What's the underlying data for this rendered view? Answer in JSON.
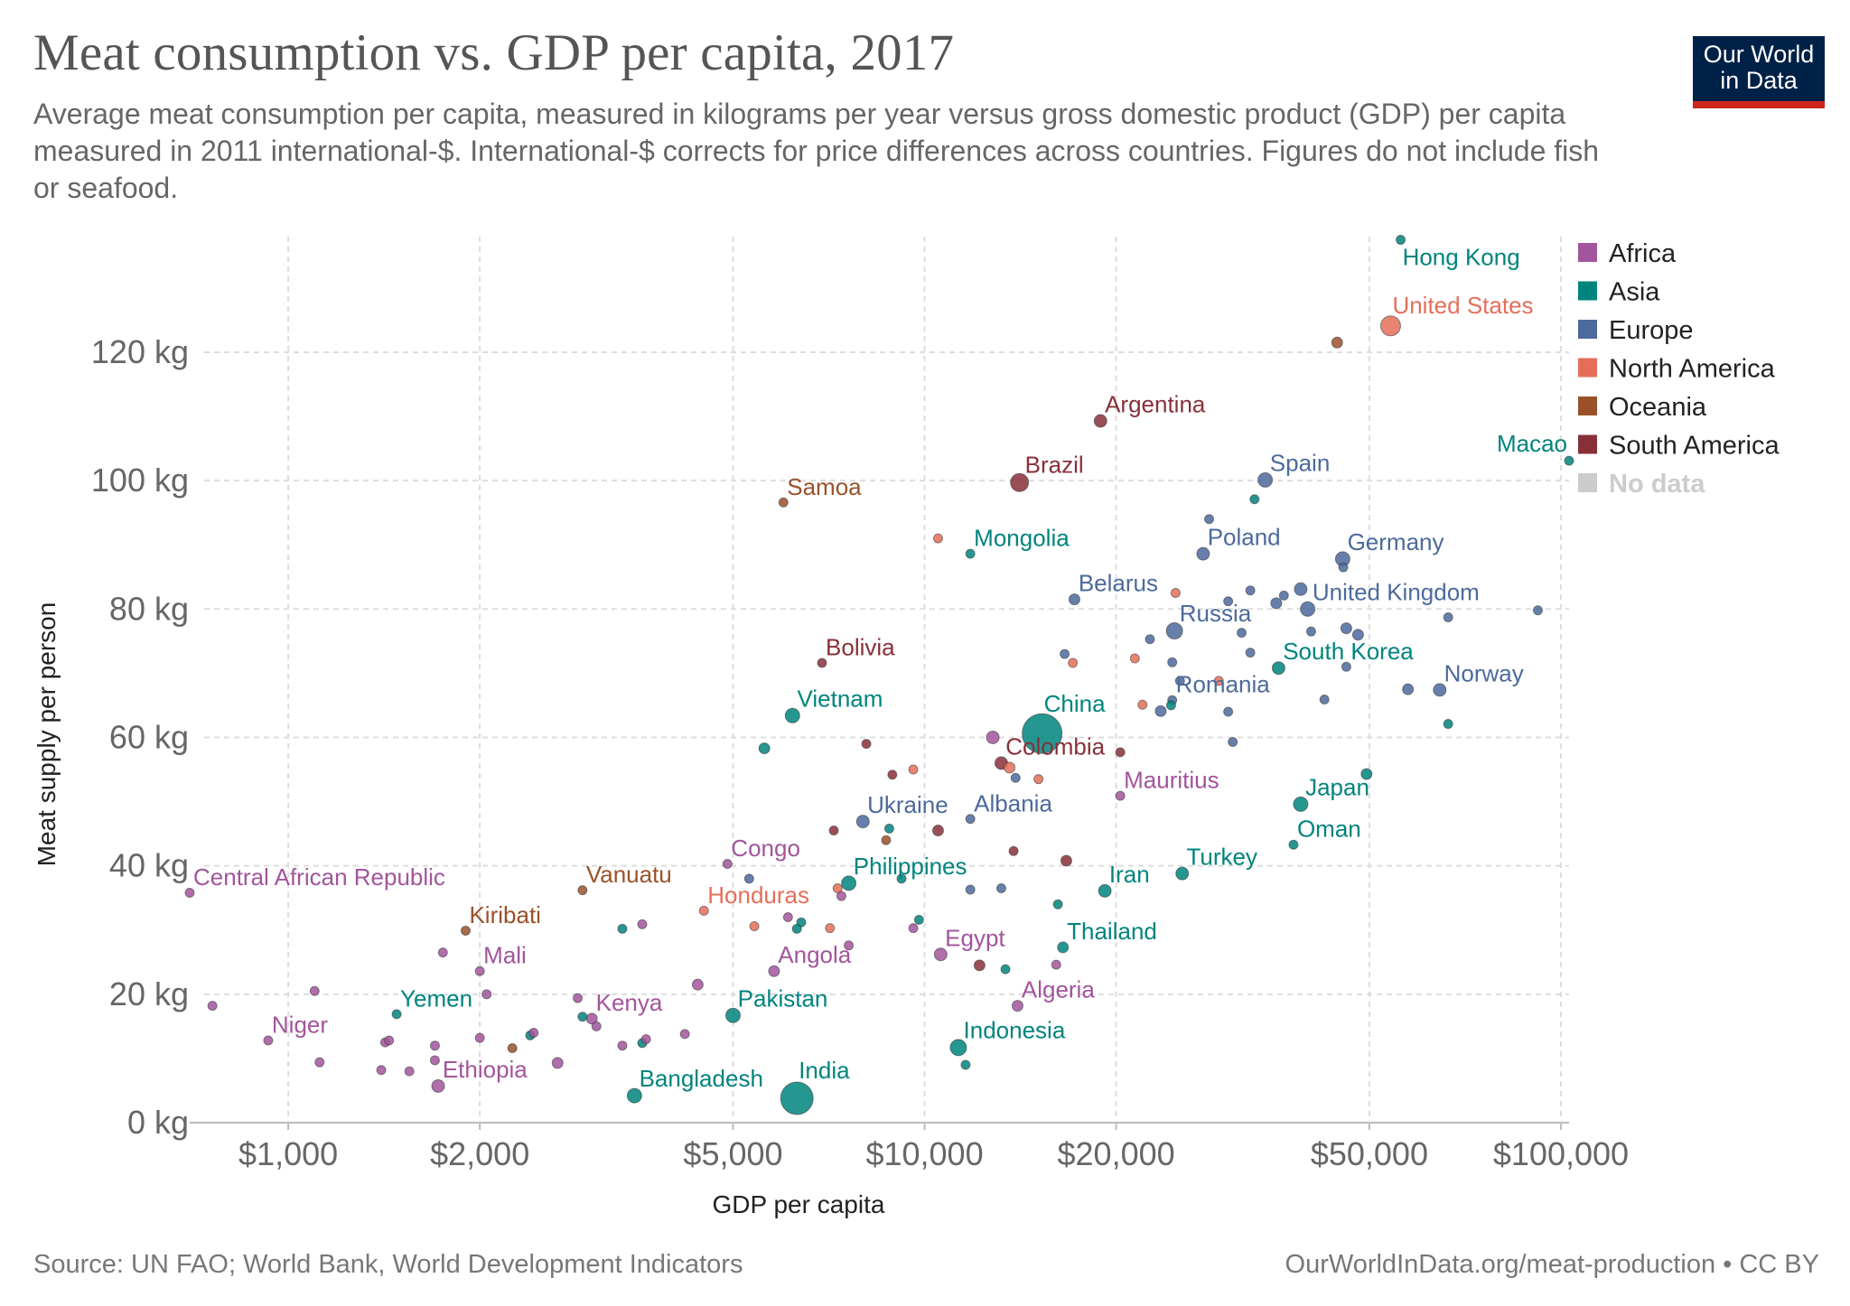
{
  "header": {
    "title": "Meat consumption vs. GDP per capita, 2017",
    "subtitle": "Average meat consumption per capita, measured in kilograms per year versus gross domestic product (GDP) per capita measured in 2011 international-$. International-$ corrects for price differences across countries. Figures do not include fish or seafood.",
    "logo_line1": "Our World",
    "logo_line2": "in Data"
  },
  "footer": {
    "source": "Source: UN FAO; World Bank, World Development Indicators",
    "link": "OurWorldInData.org/meat-production • CC BY"
  },
  "colors": {
    "Africa": "#a2559c",
    "Asia": "#00847e",
    "Europe": "#4c6a9c",
    "North America": "#e56e5a",
    "Oceania": "#9a5129",
    "South America": "#883039",
    "No data": "#cccccc",
    "grid": "#dddddd",
    "axis_text": "#666666"
  },
  "chart_data": {
    "type": "scatter",
    "xlabel": "GDP per capita",
    "ylabel": "Meat supply per person",
    "x_scale": "log",
    "xlim": [
      700,
      103000
    ],
    "ylim": [
      0,
      138
    ],
    "x_ticks": [
      1000,
      2000,
      5000,
      10000,
      20000,
      50000,
      100000
    ],
    "x_tick_labels": [
      "$1,000",
      "$2,000",
      "$5,000",
      "$10,000",
      "$20,000",
      "$50,000",
      "$100,000"
    ],
    "y_ticks": [
      0,
      20,
      40,
      60,
      80,
      100,
      120
    ],
    "y_tick_labels": [
      "0 kg",
      "20 kg",
      "40 kg",
      "60 kg",
      "80 kg",
      "100 kg",
      "120 kg"
    ],
    "grid": true,
    "legend_position": "right",
    "legend": [
      "Africa",
      "Asia",
      "Europe",
      "North America",
      "Oceania",
      "South America",
      "No data"
    ],
    "points": [
      {
        "label": "Hong Kong",
        "region": "Asia",
        "x": 56000,
        "y": 137.5,
        "size": 5
      },
      {
        "label": "United States",
        "region": "North America",
        "x": 54000,
        "y": 124.1,
        "size": 11
      },
      {
        "label": "",
        "region": "Oceania",
        "x": 44500,
        "y": 121.5,
        "size": 6
      },
      {
        "label": "Argentina",
        "region": "South America",
        "x": 18900,
        "y": 109.3,
        "size": 7
      },
      {
        "label": "Macao",
        "region": "Asia",
        "x": 103000,
        "y": 103.1,
        "size": 5
      },
      {
        "label": "Spain",
        "region": "Europe",
        "x": 34300,
        "y": 100.1,
        "size": 8
      },
      {
        "label": "Brazil",
        "region": "South America",
        "x": 14100,
        "y": 99.7,
        "size": 10
      },
      {
        "label": "Samoa",
        "region": "Oceania",
        "x": 6000,
        "y": 96.6,
        "size": 5
      },
      {
        "label": "",
        "region": "Europe",
        "x": 28000,
        "y": 94.0,
        "size": 5
      },
      {
        "label": "",
        "region": "Asia",
        "x": 33000,
        "y": 97.1,
        "size": 5
      },
      {
        "label": "Mongolia",
        "region": "Asia",
        "x": 11800,
        "y": 88.6,
        "size": 5
      },
      {
        "label": "",
        "region": "North America",
        "x": 10500,
        "y": 91.0,
        "size": 5
      },
      {
        "label": "Poland",
        "region": "Europe",
        "x": 27400,
        "y": 88.6,
        "size": 7
      },
      {
        "label": "Germany",
        "region": "Europe",
        "x": 45400,
        "y": 87.8,
        "size": 8
      },
      {
        "label": "",
        "region": "Europe",
        "x": 45500,
        "y": 86.5,
        "size": 5
      },
      {
        "label": "Belarus",
        "region": "Europe",
        "x": 17200,
        "y": 81.5,
        "size": 6
      },
      {
        "label": "",
        "region": "North America",
        "x": 24800,
        "y": 82.5,
        "size": 5
      },
      {
        "label": "",
        "region": "Europe",
        "x": 32500,
        "y": 82.9,
        "size": 5
      },
      {
        "label": "",
        "region": "Europe",
        "x": 30000,
        "y": 81.2,
        "size": 5
      },
      {
        "label": "",
        "region": "Europe",
        "x": 36700,
        "y": 82.1,
        "size": 5
      },
      {
        "label": "",
        "region": "Europe",
        "x": 39000,
        "y": 83.1,
        "size": 7
      },
      {
        "label": "",
        "region": "Europe",
        "x": 35700,
        "y": 80.9,
        "size": 6
      },
      {
        "label": "United Kingdom",
        "region": "Europe",
        "x": 40000,
        "y": 80.0,
        "size": 8
      },
      {
        "label": "",
        "region": "Europe",
        "x": 66500,
        "y": 78.7,
        "size": 5
      },
      {
        "label": "",
        "region": "Europe",
        "x": 92000,
        "y": 79.8,
        "size": 5
      },
      {
        "label": "Russia",
        "region": "Europe",
        "x": 24700,
        "y": 76.6,
        "size": 9
      },
      {
        "label": "",
        "region": "Europe",
        "x": 22600,
        "y": 75.3,
        "size": 5
      },
      {
        "label": "",
        "region": "Europe",
        "x": 31500,
        "y": 76.3,
        "size": 5
      },
      {
        "label": "",
        "region": "Europe",
        "x": 40500,
        "y": 76.5,
        "size": 5
      },
      {
        "label": "",
        "region": "Europe",
        "x": 46000,
        "y": 77.0,
        "size": 6
      },
      {
        "label": "",
        "region": "Europe",
        "x": 48000,
        "y": 76.0,
        "size": 6
      },
      {
        "label": "Bolivia",
        "region": "South America",
        "x": 6900,
        "y": 71.6,
        "size": 5
      },
      {
        "label": "",
        "region": "Europe",
        "x": 16600,
        "y": 73.0,
        "size": 5
      },
      {
        "label": "",
        "region": "North America",
        "x": 17100,
        "y": 71.6,
        "size": 5
      },
      {
        "label": "",
        "region": "North America",
        "x": 21400,
        "y": 72.3,
        "size": 5
      },
      {
        "label": "",
        "region": "Europe",
        "x": 24500,
        "y": 71.7,
        "size": 5
      },
      {
        "label": "",
        "region": "Europe",
        "x": 32500,
        "y": 73.2,
        "size": 5
      },
      {
        "label": "South Korea",
        "region": "Asia",
        "x": 36000,
        "y": 70.8,
        "size": 7
      },
      {
        "label": "",
        "region": "Europe",
        "x": 46000,
        "y": 71.0,
        "size": 5
      },
      {
        "label": "",
        "region": "Europe",
        "x": 25200,
        "y": 68.8,
        "size": 5
      },
      {
        "label": "",
        "region": "North America",
        "x": 29000,
        "y": 68.8,
        "size": 5
      },
      {
        "label": "",
        "region": "Europe",
        "x": 57500,
        "y": 67.5,
        "size": 6
      },
      {
        "label": "Norway",
        "region": "Europe",
        "x": 64500,
        "y": 67.4,
        "size": 7
      },
      {
        "label": "Romania",
        "region": "Europe",
        "x": 24500,
        "y": 65.8,
        "size": 5
      },
      {
        "label": "",
        "region": "Asia",
        "x": 24400,
        "y": 65.0,
        "size": 5
      },
      {
        "label": "",
        "region": "North America",
        "x": 22000,
        "y": 65.1,
        "size": 5
      },
      {
        "label": "",
        "region": "Europe",
        "x": 23500,
        "y": 64.1,
        "size": 6
      },
      {
        "label": "",
        "region": "Europe",
        "x": 30000,
        "y": 64.0,
        "size": 5
      },
      {
        "label": "",
        "region": "Europe",
        "x": 42500,
        "y": 65.9,
        "size": 5
      },
      {
        "label": "Vietnam",
        "region": "Asia",
        "x": 6200,
        "y": 63.4,
        "size": 8
      },
      {
        "label": "",
        "region": "Asia",
        "x": 66500,
        "y": 62.1,
        "size": 5
      },
      {
        "label": "China",
        "region": "Asia",
        "x": 15300,
        "y": 60.6,
        "size": 22
      },
      {
        "label": "",
        "region": "Africa",
        "x": 12800,
        "y": 60.0,
        "size": 7
      },
      {
        "label": "",
        "region": "Europe",
        "x": 30500,
        "y": 59.3,
        "size": 5
      },
      {
        "label": "",
        "region": "Asia",
        "x": 5600,
        "y": 58.3,
        "size": 6
      },
      {
        "label": "",
        "region": "South America",
        "x": 8100,
        "y": 59.0,
        "size": 5
      },
      {
        "label": "Colombia",
        "region": "South America",
        "x": 13200,
        "y": 56.0,
        "size": 7
      },
      {
        "label": "",
        "region": "South America",
        "x": 20300,
        "y": 57.7,
        "size": 5
      },
      {
        "label": "",
        "region": "North America",
        "x": 9600,
        "y": 55.0,
        "size": 5
      },
      {
        "label": "",
        "region": "South America",
        "x": 8900,
        "y": 54.2,
        "size": 5
      },
      {
        "label": "",
        "region": "North America",
        "x": 13600,
        "y": 55.3,
        "size": 6
      },
      {
        "label": "",
        "region": "Europe",
        "x": 13900,
        "y": 53.7,
        "size": 5
      },
      {
        "label": "",
        "region": "North America",
        "x": 15100,
        "y": 53.5,
        "size": 5
      },
      {
        "label": "Mauritius",
        "region": "Africa",
        "x": 20300,
        "y": 50.9,
        "size": 5
      },
      {
        "label": "",
        "region": "Asia",
        "x": 49500,
        "y": 54.3,
        "size": 6
      },
      {
        "label": "Japan",
        "region": "Asia",
        "x": 39000,
        "y": 49.6,
        "size": 8
      },
      {
        "label": "Ukraine",
        "region": "Europe",
        "x": 8000,
        "y": 46.9,
        "size": 7
      },
      {
        "label": "Albania",
        "region": "Europe",
        "x": 11800,
        "y": 47.3,
        "size": 5
      },
      {
        "label": "",
        "region": "South America",
        "x": 7200,
        "y": 45.5,
        "size": 5
      },
      {
        "label": "",
        "region": "Asia",
        "x": 8800,
        "y": 45.8,
        "size": 5
      },
      {
        "label": "",
        "region": "South America",
        "x": 10500,
        "y": 45.5,
        "size": 6
      },
      {
        "label": "",
        "region": "Oceania",
        "x": 8700,
        "y": 44.0,
        "size": 5
      },
      {
        "label": "Oman",
        "region": "Asia",
        "x": 38000,
        "y": 43.3,
        "size": 5
      },
      {
        "label": "",
        "region": "South America",
        "x": 13800,
        "y": 42.3,
        "size": 5
      },
      {
        "label": "",
        "region": "South America",
        "x": 16700,
        "y": 40.8,
        "size": 6
      },
      {
        "label": "Congo",
        "region": "Africa",
        "x": 4900,
        "y": 40.3,
        "size": 5
      },
      {
        "label": "",
        "region": "Europe",
        "x": 5300,
        "y": 38.0,
        "size": 5
      },
      {
        "label": "Philippines",
        "region": "Asia",
        "x": 7600,
        "y": 37.3,
        "size": 8
      },
      {
        "label": "",
        "region": "Asia",
        "x": 9200,
        "y": 38.0,
        "size": 5
      },
      {
        "label": "",
        "region": "North America",
        "x": 7300,
        "y": 36.5,
        "size": 5
      },
      {
        "label": "",
        "region": "Africa",
        "x": 7400,
        "y": 35.3,
        "size": 5
      },
      {
        "label": "",
        "region": "Europe",
        "x": 11800,
        "y": 36.3,
        "size": 5
      },
      {
        "label": "",
        "region": "Europe",
        "x": 13200,
        "y": 36.5,
        "size": 5
      },
      {
        "label": "Iran",
        "region": "Asia",
        "x": 19200,
        "y": 36.1,
        "size": 7
      },
      {
        "label": "Turkey",
        "region": "Asia",
        "x": 25400,
        "y": 38.8,
        "size": 7
      },
      {
        "label": "",
        "region": "Asia",
        "x": 16200,
        "y": 34.0,
        "size": 5
      },
      {
        "label": "Central African Republic",
        "region": "Africa",
        "x": 700,
        "y": 35.8,
        "size": 5
      },
      {
        "label": "Vanuatu",
        "region": "Oceania",
        "x": 2900,
        "y": 36.2,
        "size": 5
      },
      {
        "label": "Honduras",
        "region": "North America",
        "x": 4500,
        "y": 33.0,
        "size": 5
      },
      {
        "label": "Kiribati",
        "region": "Oceania",
        "x": 1900,
        "y": 29.9,
        "size": 5
      },
      {
        "label": "",
        "region": "Asia",
        "x": 3350,
        "y": 30.2,
        "size": 5
      },
      {
        "label": "",
        "region": "Africa",
        "x": 3600,
        "y": 30.9,
        "size": 5
      },
      {
        "label": "",
        "region": "North America",
        "x": 5400,
        "y": 30.6,
        "size": 5
      },
      {
        "label": "",
        "region": "Africa",
        "x": 6100,
        "y": 32.0,
        "size": 5
      },
      {
        "label": "",
        "region": "Asia",
        "x": 6400,
        "y": 31.2,
        "size": 5
      },
      {
        "label": "",
        "region": "Asia",
        "x": 6300,
        "y": 30.2,
        "size": 5
      },
      {
        "label": "",
        "region": "North America",
        "x": 7100,
        "y": 30.3,
        "size": 5
      },
      {
        "label": "",
        "region": "Asia",
        "x": 9800,
        "y": 31.6,
        "size": 5
      },
      {
        "label": "",
        "region": "Africa",
        "x": 9600,
        "y": 30.3,
        "size": 5
      },
      {
        "label": "Thailand",
        "region": "Asia",
        "x": 16500,
        "y": 27.3,
        "size": 6
      },
      {
        "label": "",
        "region": "Africa",
        "x": 7600,
        "y": 27.6,
        "size": 5
      },
      {
        "label": "Mali",
        "region": "Africa",
        "x": 2000,
        "y": 23.6,
        "size": 5
      },
      {
        "label": "",
        "region": "Africa",
        "x": 1750,
        "y": 26.5,
        "size": 5
      },
      {
        "label": "Egypt",
        "region": "Africa",
        "x": 10600,
        "y": 26.2,
        "size": 7
      },
      {
        "label": "Angola",
        "region": "Africa",
        "x": 5800,
        "y": 23.6,
        "size": 6
      },
      {
        "label": "",
        "region": "South America",
        "x": 12200,
        "y": 24.5,
        "size": 6
      },
      {
        "label": "",
        "region": "Asia",
        "x": 13400,
        "y": 23.9,
        "size": 5
      },
      {
        "label": "",
        "region": "Africa",
        "x": 16100,
        "y": 24.6,
        "size": 5
      },
      {
        "label": "",
        "region": "Africa",
        "x": 4400,
        "y": 21.5,
        "size": 6
      },
      {
        "label": "",
        "region": "Africa",
        "x": 1100,
        "y": 20.5,
        "size": 5
      },
      {
        "label": "",
        "region": "Africa",
        "x": 2050,
        "y": 20.0,
        "size": 5
      },
      {
        "label": "",
        "region": "Africa",
        "x": 2850,
        "y": 19.4,
        "size": 5
      },
      {
        "label": "Algeria",
        "region": "Africa",
        "x": 14000,
        "y": 18.2,
        "size": 6
      },
      {
        "label": "Pakistan",
        "region": "Asia",
        "x": 5000,
        "y": 16.7,
        "size": 8
      },
      {
        "label": "Yemen",
        "region": "Asia",
        "x": 1480,
        "y": 16.9,
        "size": 5
      },
      {
        "label": "",
        "region": "Africa",
        "x": 760,
        "y": 18.2,
        "size": 5
      },
      {
        "label": "Kenya",
        "region": "Africa",
        "x": 3000,
        "y": 16.2,
        "size": 6
      },
      {
        "label": "",
        "region": "Asia",
        "x": 2900,
        "y": 16.5,
        "size": 5
      },
      {
        "label": "",
        "region": "Africa",
        "x": 3050,
        "y": 15.0,
        "size": 5
      },
      {
        "label": "Niger",
        "region": "Africa",
        "x": 930,
        "y": 12.8,
        "size": 5
      },
      {
        "label": "",
        "region": "Africa",
        "x": 1420,
        "y": 12.5,
        "size": 5
      },
      {
        "label": "",
        "region": "Africa",
        "x": 1440,
        "y": 12.8,
        "size": 5
      },
      {
        "label": "",
        "region": "Africa",
        "x": 1700,
        "y": 12.0,
        "size": 5
      },
      {
        "label": "",
        "region": "Africa",
        "x": 2000,
        "y": 13.2,
        "size": 5
      },
      {
        "label": "",
        "region": "Oceania",
        "x": 2250,
        "y": 11.6,
        "size": 5
      },
      {
        "label": "",
        "region": "Asia",
        "x": 2400,
        "y": 13.6,
        "size": 5
      },
      {
        "label": "",
        "region": "Africa",
        "x": 2430,
        "y": 14.0,
        "size": 5
      },
      {
        "label": "",
        "region": "Africa",
        "x": 3350,
        "y": 12.0,
        "size": 5
      },
      {
        "label": "",
        "region": "Asia",
        "x": 3600,
        "y": 12.4,
        "size": 5
      },
      {
        "label": "",
        "region": "Africa",
        "x": 3650,
        "y": 13.0,
        "size": 5
      },
      {
        "label": "",
        "region": "Africa",
        "x": 4200,
        "y": 13.8,
        "size": 5
      },
      {
        "label": "Indonesia",
        "region": "Asia",
        "x": 11300,
        "y": 11.7,
        "size": 9
      },
      {
        "label": "",
        "region": "Asia",
        "x": 11600,
        "y": 9.0,
        "size": 5
      },
      {
        "label": "",
        "region": "Africa",
        "x": 1120,
        "y": 9.4,
        "size": 5
      },
      {
        "label": "",
        "region": "Africa",
        "x": 1700,
        "y": 9.7,
        "size": 5
      },
      {
        "label": "",
        "region": "Africa",
        "x": 1400,
        "y": 8.2,
        "size": 5
      },
      {
        "label": "",
        "region": "Africa",
        "x": 1550,
        "y": 8.0,
        "size": 5
      },
      {
        "label": "",
        "region": "Africa",
        "x": 2650,
        "y": 9.3,
        "size": 6
      },
      {
        "label": "Ethiopia",
        "region": "Africa",
        "x": 1720,
        "y": 5.7,
        "size": 7
      },
      {
        "label": "Bangladesh",
        "region": "Asia",
        "x": 3500,
        "y": 4.2,
        "size": 8
      },
      {
        "label": "India",
        "region": "Asia",
        "x": 6300,
        "y": 3.8,
        "size": 18
      }
    ]
  }
}
